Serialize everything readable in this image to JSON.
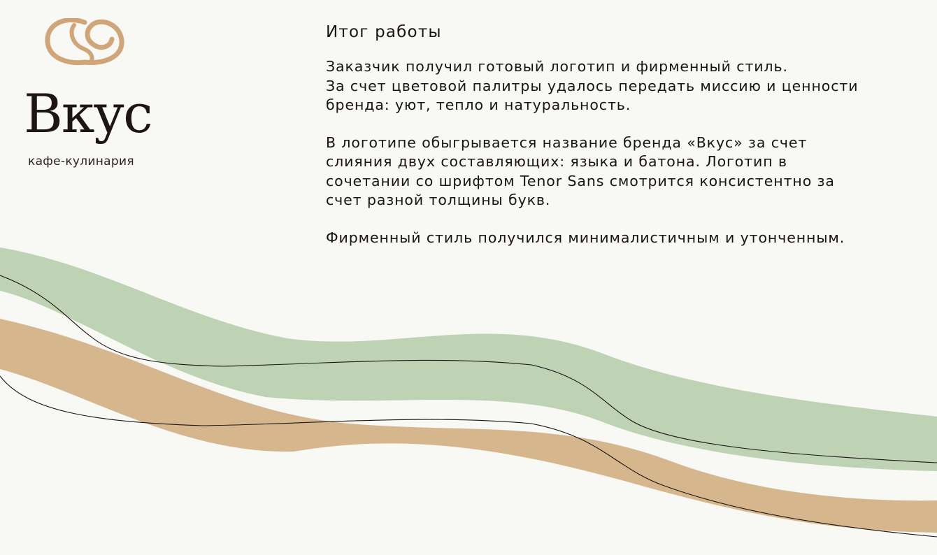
{
  "brand": {
    "name": "Вкус",
    "tagline": "кафе-кулинария",
    "accent_color": "#d0a679",
    "text_color": "#1e1414"
  },
  "content": {
    "title": "Итог работы",
    "paragraphs": [
      "Заказчик получил готовый логотип и фирменный стиль.\nЗа счет цветовой палитры удалось передать миссию и ценности\nбренда: уют, тепло и натуральность.",
      "В логотипе обыгрывается название бренда «Вкус» за счет\nслияния двух составляющих: языка и батона. Логотип в\nсочетании со шрифтом Tenor Sans смотрится консистентно за\nсчет разной толщины букв.",
      "Фирменный стиль получился минималистичным и утонченным."
    ]
  },
  "decor": {
    "background_color": "#f8f8f4",
    "green_band_color": "#bdd3b4",
    "tan_band_color": "#d6b68d",
    "line_color": "#1a1414"
  }
}
